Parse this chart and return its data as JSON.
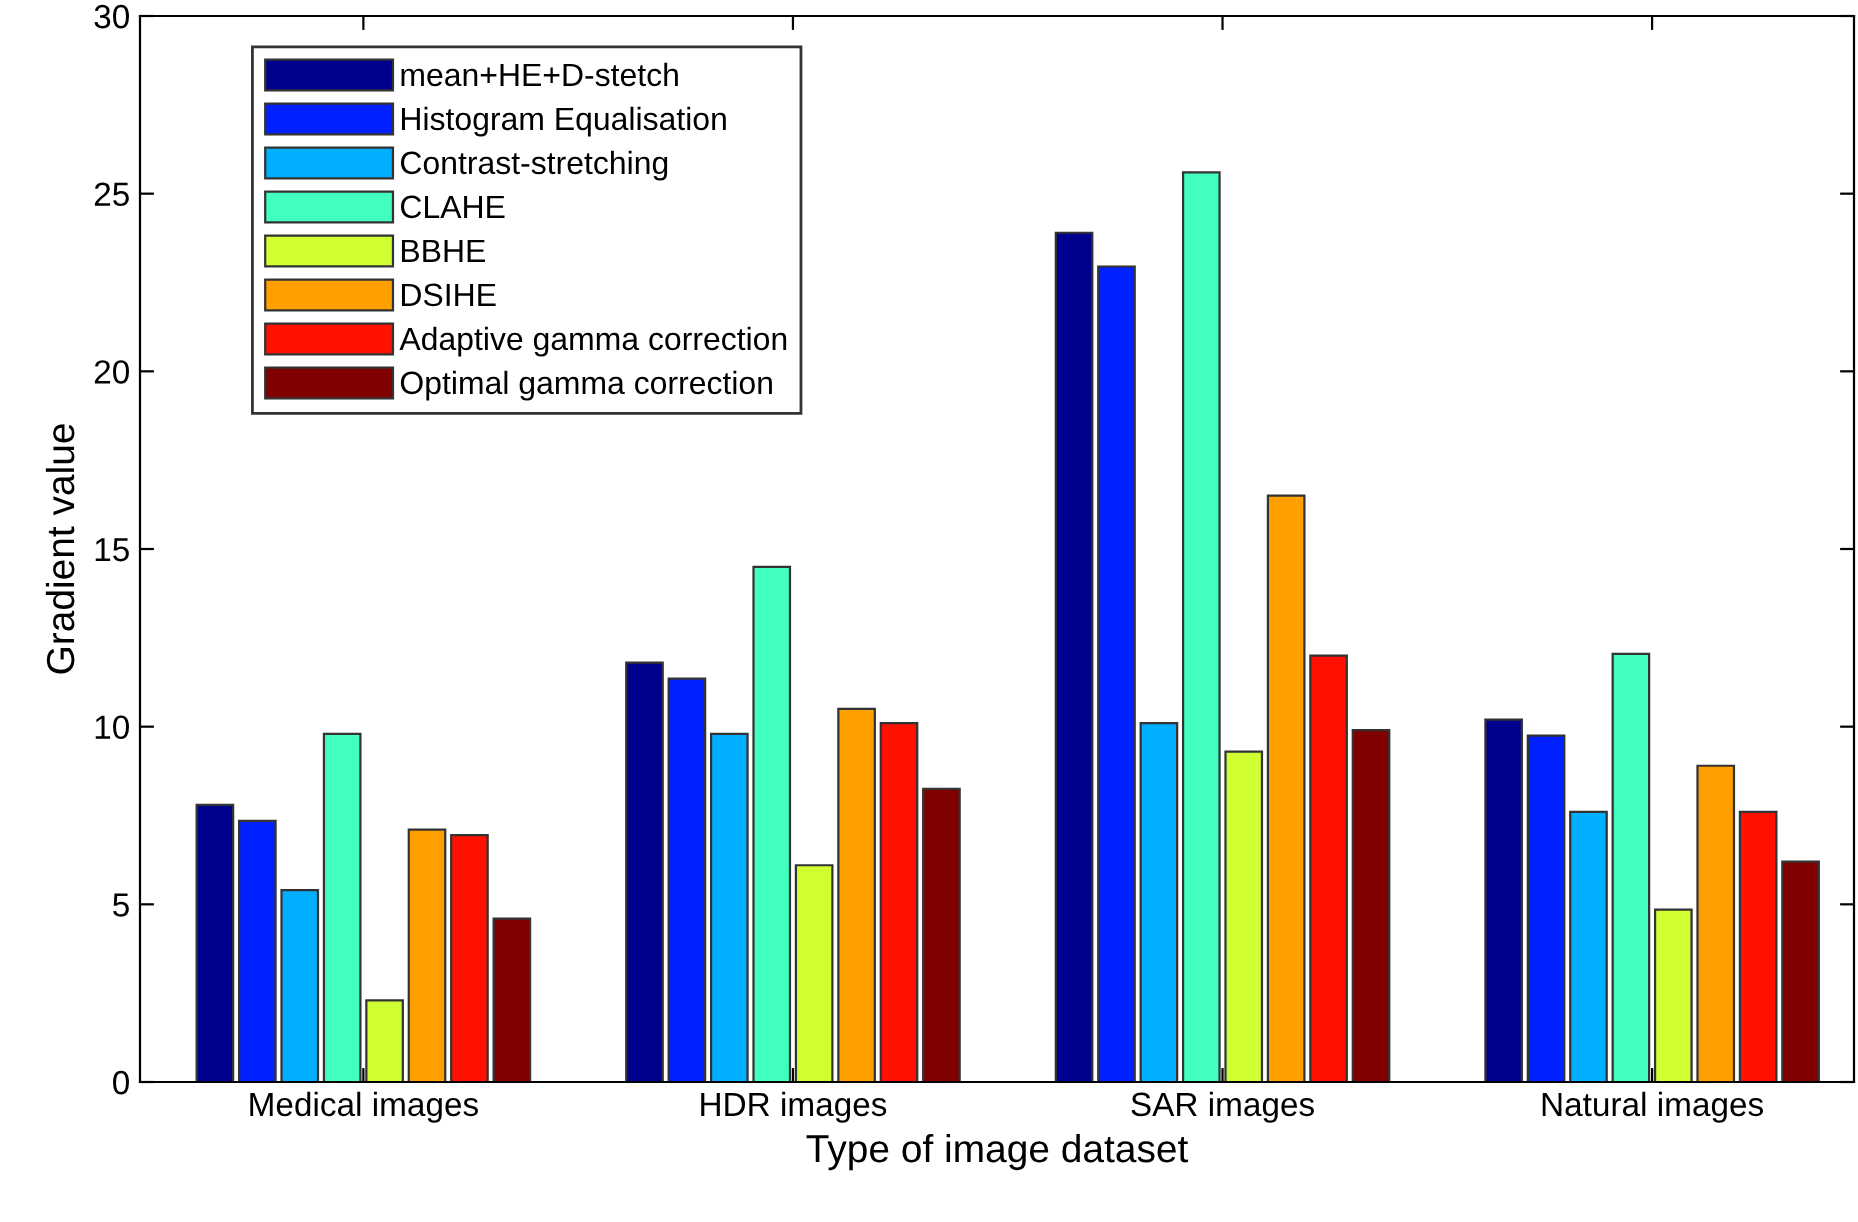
{
  "chart_data": {
    "type": "bar",
    "xlabel": "Type of image dataset",
    "ylabel": "Gradient value",
    "categories": [
      "Medical images",
      "HDR images",
      "SAR images",
      "Natural images"
    ],
    "ylim": [
      0,
      30
    ],
    "yticks": [
      0,
      5,
      10,
      15,
      20,
      25,
      30
    ],
    "grid": false,
    "legend": "top left",
    "series": [
      {
        "name": "mean+HE+D-stetch",
        "color": "#00008f",
        "values": [
          7.8,
          11.8,
          23.9,
          10.2
        ]
      },
      {
        "name": "Histogram Equalisation",
        "color": "#0020ff",
        "values": [
          7.35,
          11.35,
          22.95,
          9.75
        ]
      },
      {
        "name": "Contrast-stretching",
        "color": "#00afff",
        "values": [
          5.4,
          9.8,
          10.1,
          7.6
        ]
      },
      {
        "name": "CLAHE",
        "color": "#40ffbf",
        "values": [
          9.8,
          14.5,
          25.6,
          12.05
        ]
      },
      {
        "name": "BBHE",
        "color": "#cfff30",
        "values": [
          2.3,
          6.1,
          9.3,
          4.85
        ]
      },
      {
        "name": "DSIHE",
        "color": "#ff9f00",
        "values": [
          7.1,
          10.5,
          16.5,
          8.9
        ]
      },
      {
        "name": "Adaptive gamma correction",
        "color": "#ff1000",
        "values": [
          6.95,
          10.1,
          12.0,
          7.6
        ]
      },
      {
        "name": "Optimal gamma correction",
        "color": "#800000",
        "values": [
          4.6,
          8.25,
          9.9,
          6.2
        ]
      }
    ]
  }
}
